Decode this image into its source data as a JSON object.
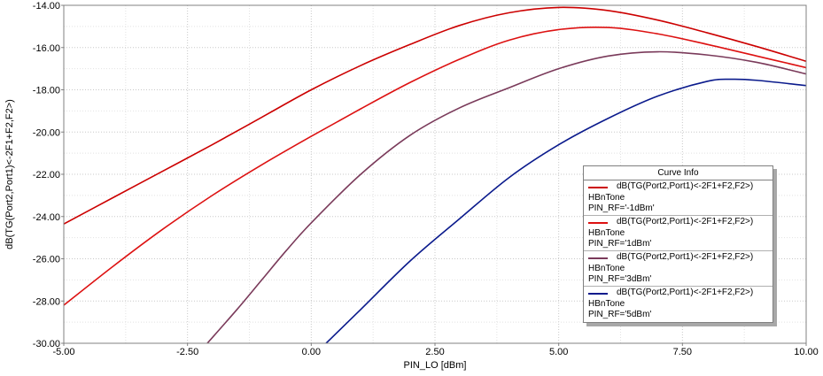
{
  "chart_data": {
    "type": "line",
    "xlabel": "PIN_LO [dBm]",
    "ylabel": "dB(TG(Port2,Port1)<-2F1+F2,F2>)",
    "xlim": [
      -5.0,
      10.0
    ],
    "ylim": [
      -30.0,
      -14.0
    ],
    "x_ticks": [
      "-5.00",
      "-2.50",
      "0.00",
      "2.50",
      "5.00",
      "7.50",
      "10.00"
    ],
    "y_ticks": [
      "-14.00",
      "-16.00",
      "-18.00",
      "-20.00",
      "-22.00",
      "-24.00",
      "-26.00",
      "-28.00",
      "-30.00"
    ],
    "grid": true,
    "legend": {
      "title": "Curve Info",
      "placement": "lower-right"
    },
    "series": [
      {
        "name": "dB(TG(Port2,Port1)<-2F1+F2,F2>)",
        "sub1": "HBnTone",
        "sub2": "PIN_RF='-1dBm'",
        "color": "#cc0000",
        "x": [
          -5.0,
          -4.0,
          -3.0,
          -2.0,
          -1.0,
          0.0,
          1.0,
          2.0,
          3.0,
          4.0,
          5.0,
          6.0,
          7.0,
          8.0,
          9.0,
          10.0
        ],
        "y": [
          -24.35,
          -23.1,
          -21.85,
          -20.6,
          -19.3,
          -18.0,
          -16.85,
          -15.85,
          -14.95,
          -14.35,
          -14.1,
          -14.25,
          -14.7,
          -15.3,
          -15.95,
          -16.65
        ]
      },
      {
        "name": "dB(TG(Port2,Port1)<-2F1+F2,F2>)",
        "sub1": "HBnTone",
        "sub2": "PIN_RF='1dBm'",
        "color": "#dd1111",
        "x": [
          -5.0,
          -4.0,
          -3.0,
          -2.0,
          -1.0,
          0.0,
          1.0,
          2.0,
          3.0,
          4.0,
          5.0,
          6.0,
          7.0,
          8.0,
          9.0,
          10.0
        ],
        "y": [
          -28.2,
          -26.35,
          -24.6,
          -23.0,
          -21.55,
          -20.2,
          -18.9,
          -17.65,
          -16.55,
          -15.65,
          -15.15,
          -15.05,
          -15.35,
          -15.85,
          -16.4,
          -16.95
        ]
      },
      {
        "name": "dB(TG(Port2,Port1)<-2F1+F2,F2>)",
        "sub1": "HBnTone",
        "sub2": "PIN_RF='3dBm'",
        "color": "#7a3a5a",
        "x": [
          -2.1,
          -1.5,
          -1.0,
          -0.5,
          0.0,
          1.0,
          2.0,
          3.0,
          4.0,
          5.0,
          6.0,
          7.0,
          8.0,
          9.0,
          10.0
        ],
        "y": [
          -30.0,
          -28.4,
          -27.0,
          -25.6,
          -24.3,
          -22.0,
          -20.15,
          -18.85,
          -17.9,
          -17.0,
          -16.4,
          -16.2,
          -16.35,
          -16.7,
          -17.25
        ]
      },
      {
        "name": "dB(TG(Port2,Port1)<-2F1+F2,F2>)",
        "sub1": "HBnTone",
        "sub2": "PIN_RF='5dBm'",
        "color": "#0a1a8c",
        "x": [
          0.3,
          1.0,
          2.0,
          3.0,
          4.0,
          5.0,
          6.0,
          7.0,
          8.0,
          8.5,
          9.0,
          10.0
        ],
        "y": [
          -30.0,
          -28.4,
          -26.1,
          -24.1,
          -22.15,
          -20.6,
          -19.35,
          -18.3,
          -17.6,
          -17.5,
          -17.55,
          -17.8
        ]
      }
    ]
  }
}
